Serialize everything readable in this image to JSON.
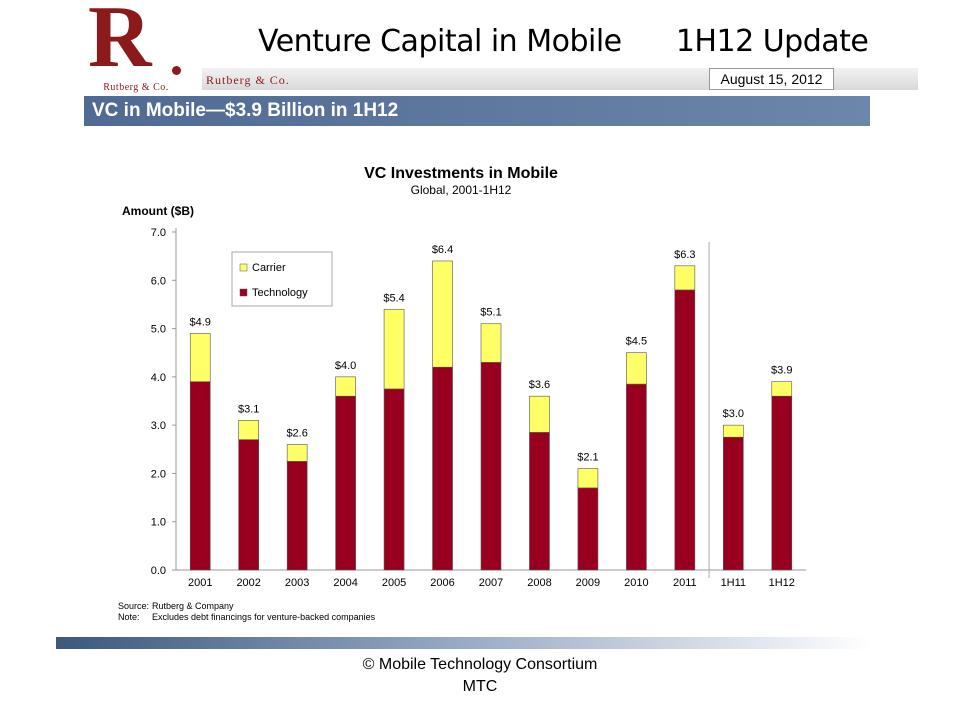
{
  "header": {
    "logo_letter": "R",
    "logo_subtitle": "Rutberg & Co.",
    "slide_title": "Venture Capital in Mobile      1H12 Update",
    "brand_name": "Rutberg & Co.",
    "date": "August 15, 2012"
  },
  "banner": {
    "title": "VC in Mobile—$3.9 Billion in 1H12"
  },
  "colors": {
    "carrier": "#ffff66",
    "technology": "#990020",
    "banner": "#5b769e",
    "logo": "#8b1a1a"
  },
  "chart_data": {
    "type": "bar",
    "stacked": true,
    "title": "VC Investments in Mobile",
    "subtitle": "Global, 2001-1H12",
    "ylabel": "Amount ($B)",
    "xlabel": "",
    "ylim": [
      0,
      7
    ],
    "yticks": [
      "0.0",
      "1.0",
      "2.0",
      "3.0",
      "4.0",
      "5.0",
      "6.0",
      "7.0"
    ],
    "categories": [
      "2001",
      "2002",
      "2003",
      "2004",
      "2005",
      "2006",
      "2007",
      "2008",
      "2009",
      "2010",
      "2011",
      "1H11",
      "1H12"
    ],
    "series": [
      {
        "name": "Technology",
        "values": [
          3.9,
          2.7,
          2.25,
          3.6,
          3.75,
          4.2,
          4.3,
          2.85,
          1.7,
          3.85,
          5.8,
          2.75,
          3.6
        ]
      },
      {
        "name": "Carrier",
        "values": [
          1.0,
          0.4,
          0.35,
          0.4,
          1.65,
          2.2,
          0.8,
          0.75,
          0.4,
          0.65,
          0.5,
          0.25,
          0.3
        ]
      }
    ],
    "totals_labels": [
      "$4.9",
      "$3.1",
      "$2.6",
      "$4.0",
      "$5.4",
      "$6.4",
      "$5.1",
      "$3.6",
      "$2.1",
      "$4.5",
      "$6.3",
      "$3.0",
      "$3.9"
    ],
    "legend": {
      "placement": "top-left",
      "items": [
        "Carrier",
        "Technology"
      ]
    },
    "separator_after_category": "2011",
    "grid": false,
    "source_label": "Source:",
    "source_text": "Rutberg & Company",
    "note_label": "Note:",
    "note_text": "Excludes debt financings for venture-backed companies"
  },
  "footer": {
    "line1": "©  Mobile Technology Consortium",
    "line2": "MTC"
  }
}
